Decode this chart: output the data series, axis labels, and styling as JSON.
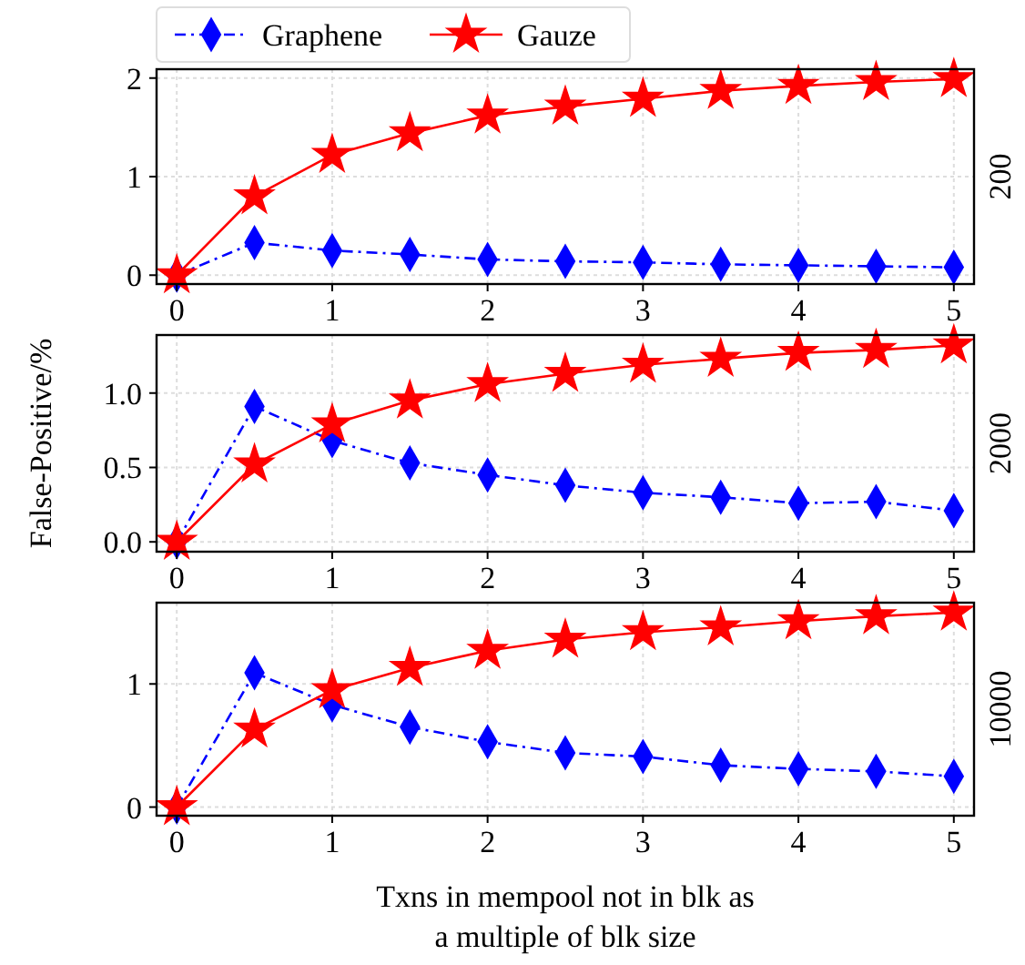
{
  "chart_data": [
    {
      "type": "line",
      "x": [
        0,
        0.5,
        1,
        1.5,
        2,
        2.5,
        3,
        3.5,
        4,
        4.5,
        5
      ],
      "xlim": [
        -0.13,
        5.13
      ],
      "xticks": [
        0,
        1,
        2,
        3,
        4,
        5
      ],
      "ylim": [
        -0.09,
        2.09
      ],
      "yticks": [
        0,
        1,
        2
      ],
      "y2label": "200",
      "grid": true,
      "legend": "top left",
      "series": [
        {
          "name": "Graphene",
          "color": "#0000ff",
          "marker": "diamond",
          "line_style": "dashed",
          "values": [
            0,
            0.33,
            0.25,
            0.21,
            0.16,
            0.14,
            0.13,
            0.11,
            0.1,
            0.09,
            0.08
          ]
        },
        {
          "name": "Gauze",
          "color": "#ff0000",
          "marker": "star",
          "line_style": "solid",
          "values": [
            0,
            0.8,
            1.22,
            1.44,
            1.62,
            1.71,
            1.79,
            1.87,
            1.92,
            1.96,
            1.99
          ]
        }
      ]
    },
    {
      "type": "line",
      "x": [
        0,
        0.5,
        1,
        1.5,
        2,
        2.5,
        3,
        3.5,
        4,
        4.5,
        5
      ],
      "xlim": [
        -0.13,
        5.13
      ],
      "xticks": [
        0,
        1,
        2,
        3,
        4,
        5
      ],
      "ylim": [
        -0.066,
        1.39
      ],
      "yticks": [
        {
          "value": 0,
          "label": "0.0"
        },
        {
          "value": 0.5,
          "label": "0.5"
        },
        {
          "value": 1,
          "label": "1.0"
        }
      ],
      "ylabel": "False-Positive/%",
      "y2label": "2000",
      "grid": true,
      "series": [
        {
          "color": "#0000ff",
          "marker": "diamond",
          "line_style": "dashed",
          "values": [
            0,
            0.91,
            0.68,
            0.53,
            0.45,
            0.38,
            0.33,
            0.3,
            0.26,
            0.27,
            0.21
          ]
        },
        {
          "color": "#ff0000",
          "marker": "star",
          "line_style": "solid",
          "values": [
            0,
            0.52,
            0.79,
            0.95,
            1.06,
            1.13,
            1.19,
            1.23,
            1.27,
            1.29,
            1.32
          ]
        }
      ]
    },
    {
      "type": "line",
      "x": [
        0,
        0.5,
        1,
        1.5,
        2,
        2.5,
        3,
        3.5,
        4,
        4.5,
        5
      ],
      "xlim": [
        -0.13,
        5.13
      ],
      "xticks": [
        0,
        1,
        2,
        3,
        4,
        5
      ],
      "ylim": [
        -0.07,
        1.66
      ],
      "yticks": [
        0,
        1
      ],
      "xlabel": "Txns in mempool not in blk as\na multiple of blk size",
      "y2label": "10000",
      "grid": true,
      "series": [
        {
          "color": "#0000ff",
          "marker": "diamond",
          "line_style": "dashed",
          "values": [
            0,
            1.09,
            0.83,
            0.65,
            0.53,
            0.44,
            0.41,
            0.34,
            0.31,
            0.29,
            0.25
          ]
        },
        {
          "color": "#ff0000",
          "marker": "star",
          "line_style": "solid",
          "values": [
            0,
            0.63,
            0.95,
            1.13,
            1.27,
            1.36,
            1.42,
            1.46,
            1.51,
            1.55,
            1.58
          ]
        }
      ]
    }
  ]
}
